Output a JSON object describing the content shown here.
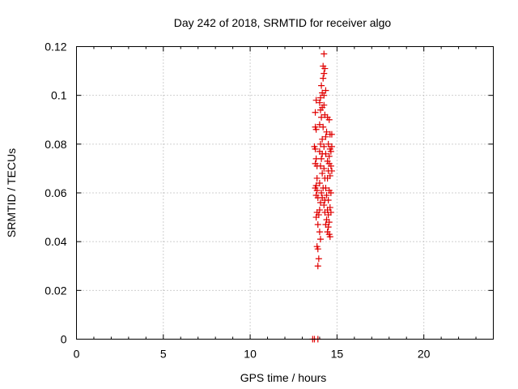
{
  "chart_data": {
    "type": "scatter",
    "title": "Day 242 of 2018, SRMTID for receiver algo",
    "xlabel": "GPS time / hours",
    "ylabel": "SRMTID / TECUs",
    "xlim": [
      0,
      24
    ],
    "ylim": [
      0,
      0.12
    ],
    "xticks": [
      0,
      5,
      10,
      15,
      20
    ],
    "yticks": [
      0,
      0.02,
      0.04,
      0.06,
      0.08,
      0.1,
      0.12
    ],
    "ytick_labels": [
      "0",
      "0.02",
      "0.04",
      "0.06",
      "0.08",
      "0.1",
      "0.12"
    ],
    "grid": true,
    "marker": "+",
    "color": "#e00000",
    "series": [
      {
        "name": "SRMTID",
        "points": [
          [
            13.6,
            0.0
          ],
          [
            13.7,
            0.0
          ],
          [
            13.9,
            0.0
          ],
          [
            13.75,
            0.093
          ],
          [
            13.8,
            0.098
          ],
          [
            13.75,
            0.087
          ],
          [
            13.8,
            0.086
          ],
          [
            13.7,
            0.079
          ],
          [
            13.75,
            0.078
          ],
          [
            13.8,
            0.074
          ],
          [
            13.75,
            0.072
          ],
          [
            13.85,
            0.071
          ],
          [
            13.85,
            0.066
          ],
          [
            13.8,
            0.063
          ],
          [
            13.75,
            0.062
          ],
          [
            13.85,
            0.061
          ],
          [
            13.8,
            0.059
          ],
          [
            13.9,
            0.058
          ],
          [
            13.85,
            0.052
          ],
          [
            13.95,
            0.051
          ],
          [
            13.8,
            0.05
          ],
          [
            14.0,
            0.053
          ],
          [
            13.9,
            0.047
          ],
          [
            14.0,
            0.044
          ],
          [
            14.05,
            0.041
          ],
          [
            13.85,
            0.038
          ],
          [
            13.9,
            0.037
          ],
          [
            13.95,
            0.033
          ],
          [
            13.9,
            0.03
          ],
          [
            14.25,
            0.117
          ],
          [
            14.2,
            0.112
          ],
          [
            14.3,
            0.111
          ],
          [
            14.25,
            0.109
          ],
          [
            14.2,
            0.107
          ],
          [
            14.1,
            0.104
          ],
          [
            14.15,
            0.101
          ],
          [
            14.25,
            0.1
          ],
          [
            14.05,
            0.099
          ],
          [
            14.35,
            0.102
          ],
          [
            14.0,
            0.097
          ],
          [
            14.15,
            0.095
          ],
          [
            14.25,
            0.096
          ],
          [
            14.05,
            0.094
          ],
          [
            14.1,
            0.091
          ],
          [
            14.3,
            0.092
          ],
          [
            14.0,
            0.088
          ],
          [
            14.2,
            0.087
          ],
          [
            14.45,
            0.091
          ],
          [
            14.55,
            0.09
          ],
          [
            14.4,
            0.085
          ],
          [
            14.6,
            0.084
          ],
          [
            14.35,
            0.083
          ],
          [
            14.7,
            0.084
          ],
          [
            14.15,
            0.082
          ],
          [
            14.05,
            0.08
          ],
          [
            14.25,
            0.079
          ],
          [
            14.5,
            0.08
          ],
          [
            14.6,
            0.078
          ],
          [
            14.7,
            0.079
          ],
          [
            14.0,
            0.077
          ],
          [
            14.15,
            0.076
          ],
          [
            14.35,
            0.076
          ],
          [
            14.55,
            0.075
          ],
          [
            14.65,
            0.077
          ],
          [
            14.1,
            0.074
          ],
          [
            14.45,
            0.073
          ],
          [
            14.55,
            0.072
          ],
          [
            14.65,
            0.071
          ],
          [
            14.05,
            0.071
          ],
          [
            14.25,
            0.07
          ],
          [
            14.5,
            0.069
          ],
          [
            14.7,
            0.069
          ],
          [
            14.15,
            0.068
          ],
          [
            14.6,
            0.067
          ],
          [
            14.3,
            0.066
          ],
          [
            14.45,
            0.066
          ],
          [
            14.0,
            0.064
          ],
          [
            14.2,
            0.062
          ],
          [
            14.35,
            0.062
          ],
          [
            14.55,
            0.061
          ],
          [
            14.1,
            0.06
          ],
          [
            14.4,
            0.059
          ],
          [
            14.65,
            0.06
          ],
          [
            14.15,
            0.058
          ],
          [
            14.3,
            0.057
          ],
          [
            14.5,
            0.057
          ],
          [
            14.05,
            0.056
          ],
          [
            14.25,
            0.055
          ],
          [
            14.6,
            0.054
          ],
          [
            14.45,
            0.053
          ],
          [
            14.3,
            0.052
          ],
          [
            14.65,
            0.052
          ],
          [
            14.5,
            0.051
          ],
          [
            14.4,
            0.049
          ],
          [
            14.55,
            0.048
          ],
          [
            14.35,
            0.047
          ],
          [
            14.5,
            0.046
          ],
          [
            14.45,
            0.044
          ],
          [
            14.55,
            0.043
          ],
          [
            14.6,
            0.042
          ]
        ]
      }
    ]
  }
}
